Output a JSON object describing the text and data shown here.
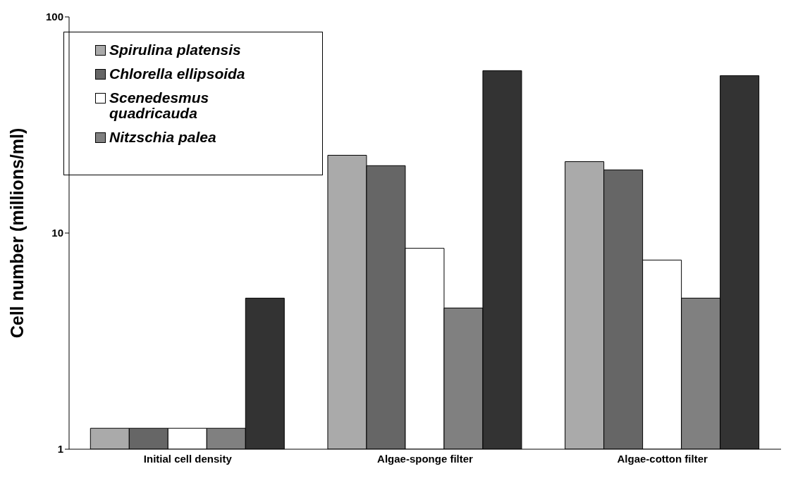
{
  "chart_data": {
    "type": "bar",
    "ylabel": "Cell number (millions/ml)",
    "categories": [
      "Initial cell density",
      "Algae-sponge filter",
      "Algae-cotton filter"
    ],
    "series": [
      {
        "name": "Spirulina platensis",
        "color": "#aaaaaa",
        "values": [
          1.25,
          22.9,
          21.4
        ]
      },
      {
        "name": "Chlorella ellipsoida",
        "color": "#666666",
        "values": [
          1.25,
          20.5,
          19.6
        ]
      },
      {
        "name": "Scenedesmus quadricauda",
        "color": "#ffffff",
        "values": [
          1.25,
          8.5,
          7.5
        ]
      },
      {
        "name": "Nitzschia palea",
        "color": "#808080",
        "values": [
          1.25,
          4.5,
          5.0
        ]
      },
      {
        "color": "#333333",
        "values": [
          5.0,
          56.4,
          53.5
        ]
      }
    ],
    "log": true,
    "ylim": [
      1,
      100
    ],
    "yticks": [
      1,
      10,
      100
    ],
    "grid": false,
    "legend": "top left"
  }
}
